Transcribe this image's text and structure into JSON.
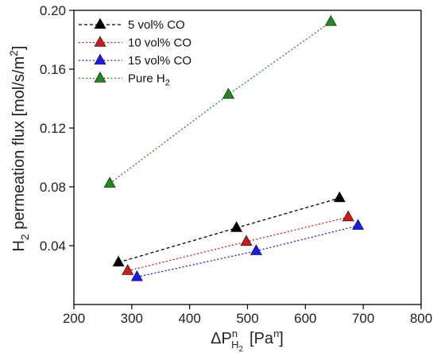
{
  "chart_data": {
    "type": "scatter",
    "xlabel": "ΔP",
    "xlabel_sup": "n",
    "xlabel_sub": "H",
    "xlabel_subsub": "2",
    "xlabel_unit": "[Pa",
    "xlabel_unit_sup": "n",
    "xlabel_unit_close": "]",
    "ylabel_prefix": "H",
    "ylabel_sub": "2",
    "ylabel_mid": " permeation flux [mol/s/m",
    "ylabel_sup": "2",
    "ylabel_close": "]",
    "xlim": [
      200,
      800
    ],
    "ylim": [
      0.0,
      0.2
    ],
    "xticks": [
      "200",
      "300",
      "400",
      "500",
      "600",
      "700",
      "800"
    ],
    "yticks": [
      "0.04",
      "0.08",
      "0.12",
      "0.16",
      "0.20"
    ],
    "grid": false,
    "legend_position": "top-left",
    "series": [
      {
        "name": "  5 vol% CO",
        "color": "#000000",
        "marker": "triangle",
        "line": "dashed",
        "x": [
          277,
          481,
          659
        ],
        "y": [
          0.0286,
          0.0521,
          0.0724
        ]
      },
      {
        "name": "10 vol% CO",
        "color": "#cc1a1a",
        "marker": "triangle",
        "line": "dotted",
        "x": [
          293,
          498,
          674
        ],
        "y": [
          0.0229,
          0.0427,
          0.0594
        ]
      },
      {
        "name": "15 vol% CO",
        "color": "#1a1aee",
        "marker": "triangle",
        "line": "dotted",
        "x": [
          309,
          515,
          691
        ],
        "y": [
          0.0187,
          0.0364,
          0.0536
        ]
      },
      {
        "name": "Pure H",
        "name_sub": "2",
        "color": "#1f8a1f",
        "marker": "triangle",
        "line": "dotted",
        "x": [
          262,
          467,
          644
        ],
        "y": [
          0.0823,
          0.1427,
          0.1922
        ]
      }
    ]
  }
}
